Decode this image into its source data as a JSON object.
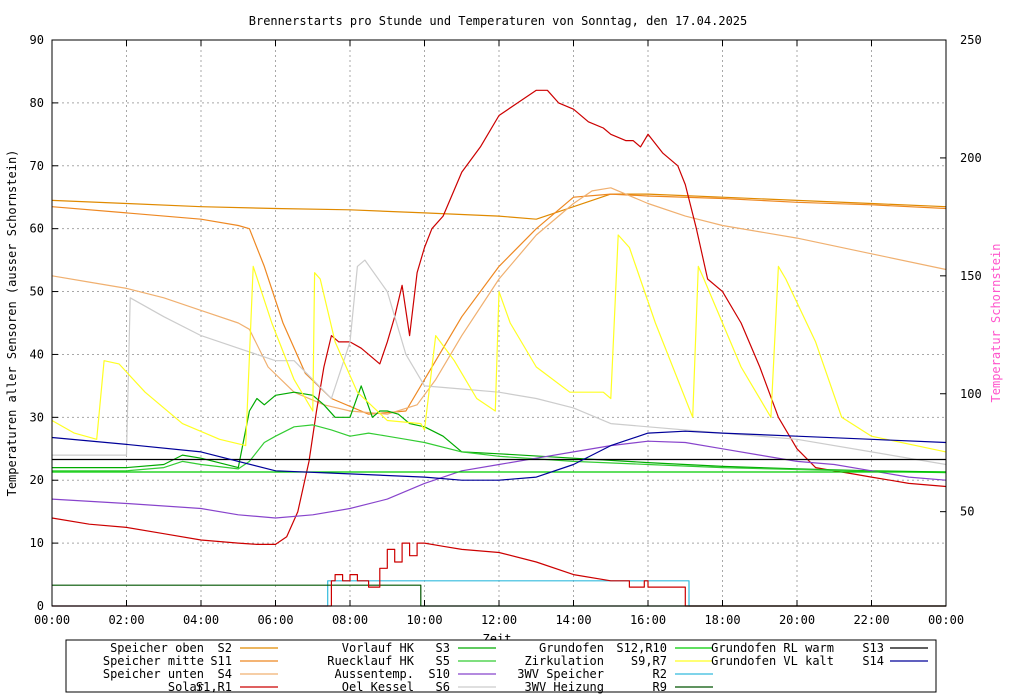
{
  "chart_data": {
    "type": "line",
    "title": "Brennerstarts pro Stunde und Temperaturen von Sonntag, den 17.04.2025",
    "xlabel": "Zeit",
    "ylabel": "Temperaturen aller Sensoren (ausser Schornstein)",
    "y2label": "Temperatur Schornstein",
    "x_ticks": [
      "00:00",
      "02:00",
      "04:00",
      "06:00",
      "08:00",
      "10:00",
      "12:00",
      "14:00",
      "16:00",
      "18:00",
      "20:00",
      "22:00",
      "00:00"
    ],
    "y_ticks": [
      "0",
      "10",
      "20",
      "30",
      "40",
      "50",
      "60",
      "70",
      "80",
      "90"
    ],
    "y2_ticks": [
      "50",
      "100",
      "150",
      "200",
      "250"
    ],
    "xlim": [
      0,
      24
    ],
    "ylim": [
      0,
      90
    ],
    "y2lim": [
      10,
      250
    ],
    "grid": true,
    "legend_position": "bottom",
    "series": [
      {
        "name": "Speicher oben",
        "code": "S2",
        "color": "#e08a00",
        "axis": "y1",
        "x": [
          0,
          2,
          4,
          6,
          8,
          10,
          12,
          13,
          14,
          15,
          16,
          18,
          20,
          22,
          24
        ],
        "y": [
          64.5,
          64,
          63.5,
          63.2,
          63,
          62.5,
          62,
          61.5,
          63.5,
          65.5,
          65.5,
          65,
          64.5,
          64,
          63.5
        ]
      },
      {
        "name": "Speicher mitte",
        "code": "S11",
        "color": "#ee8822",
        "axis": "y1",
        "x": [
          0,
          2,
          4,
          5,
          5.3,
          5.7,
          6.2,
          6.8,
          7.5,
          8.5,
          9.5,
          10,
          11,
          12,
          13,
          14,
          15,
          16,
          18,
          20,
          22,
          24
        ],
        "y": [
          63.5,
          62.5,
          61.5,
          60.5,
          60,
          54,
          45,
          37,
          33,
          30.5,
          31,
          36,
          46,
          54,
          60,
          65,
          65.5,
          65.2,
          64.8,
          64.2,
          63.8,
          63.2
        ]
      },
      {
        "name": "Speicher unten",
        "code": "S4",
        "color": "#f0b070",
        "axis": "y1",
        "x": [
          0,
          1,
          2,
          3,
          4,
          5,
          5.3,
          5.8,
          6.5,
          7.3,
          8,
          9,
          9.8,
          10.3,
          11,
          12,
          13,
          14,
          14.5,
          15,
          16,
          17,
          18,
          20,
          22,
          24
        ],
        "y": [
          52.5,
          51.5,
          50.5,
          49,
          47,
          45,
          44,
          38,
          34,
          32,
          31,
          30.5,
          32,
          36,
          43,
          52,
          59,
          64,
          66,
          66.5,
          64,
          62,
          60.5,
          58.5,
          56,
          53.5
        ]
      },
      {
        "name": "Solar",
        "code": "S1,R1",
        "color": "#cc0000",
        "axis": "y1",
        "x": [
          0,
          1,
          2,
          3,
          4,
          5,
          5.5,
          6,
          6.3,
          6.6,
          6.9,
          7.1,
          7.3,
          7.5,
          7.7,
          8,
          8.3,
          8.5,
          8.8,
          9,
          9.2,
          9.4,
          9.6,
          9.8,
          10,
          10.2,
          10.5,
          11,
          11.5,
          12,
          12.5,
          13,
          13.3,
          13.6,
          14,
          14.4,
          14.8,
          15,
          15.4,
          15.6,
          15.8,
          16,
          16.4,
          16.8,
          17,
          17.3,
          17.6,
          18,
          18.5,
          19,
          19.5,
          20,
          20.5,
          21,
          21.5,
          22,
          22.5,
          23,
          24
        ],
        "y": [
          14,
          13,
          12.5,
          11.5,
          10.5,
          10,
          9.8,
          9.8,
          11,
          15,
          23,
          31,
          38,
          43,
          42,
          42,
          41,
          40,
          38.5,
          42,
          46,
          51,
          43,
          53,
          57,
          60,
          62,
          69,
          73,
          78,
          80,
          82,
          82,
          80,
          79,
          77,
          76,
          75,
          74,
          74,
          73,
          75,
          72,
          70,
          67,
          60,
          52,
          50,
          45,
          38,
          30,
          25,
          22,
          21.5,
          21,
          20.5,
          20,
          19.5,
          19
        ]
      },
      {
        "name": "Vorlauf HK",
        "code": "S3",
        "color": "#00aa00",
        "axis": "y1",
        "x": [
          0,
          2,
          3,
          3.5,
          4,
          5,
          5.3,
          5.5,
          5.7,
          6,
          6.5,
          7,
          7.3,
          7.6,
          8,
          8.3,
          8.6,
          8.8,
          9,
          9.3,
          9.6,
          10,
          10.5,
          11,
          12,
          14,
          16,
          18,
          20,
          22,
          24
        ],
        "y": [
          22,
          22,
          22.5,
          24,
          23.5,
          22,
          31,
          33,
          32,
          33.5,
          34,
          33.5,
          32,
          30,
          30,
          35,
          30,
          31,
          31,
          30.5,
          29,
          28.5,
          27,
          24.5,
          24.2,
          23.5,
          22.8,
          22.2,
          21.8,
          21.5,
          21.3
        ]
      },
      {
        "name": "Ruecklauf HK",
        "code": "S5",
        "color": "#33cc33",
        "axis": "y1",
        "x": [
          0,
          2,
          3,
          3.5,
          4,
          5,
          5.3,
          5.7,
          6,
          6.5,
          7,
          7.5,
          8,
          8.5,
          9,
          9.5,
          10,
          11,
          12,
          14,
          16,
          18,
          20,
          22,
          24
        ],
        "y": [
          21.5,
          21.5,
          22,
          23,
          22.5,
          21.8,
          23,
          26,
          27,
          28.5,
          28.8,
          28,
          27,
          27.5,
          27,
          26.5,
          26,
          24.5,
          23.8,
          23,
          22.5,
          22,
          21.7,
          21.4,
          21.2
        ]
      },
      {
        "name": "Aussentemp.",
        "code": "S10",
        "color": "#8844cc",
        "axis": "y1",
        "x": [
          0,
          2,
          4,
          5,
          6,
          7,
          8,
          9,
          10,
          11,
          12,
          13,
          14,
          15,
          16,
          17,
          18,
          19,
          20,
          21,
          22,
          23,
          24
        ],
        "y": [
          17,
          16.3,
          15.5,
          14.5,
          14,
          14.5,
          15.5,
          17,
          19.5,
          21.5,
          22.5,
          23.5,
          24.5,
          25.5,
          26.2,
          26,
          25,
          24,
          23,
          22.5,
          21.5,
          20.5,
          20
        ]
      },
      {
        "name": "Oel Kessel",
        "code": "S6",
        "color": "#cccccc",
        "axis": "y1",
        "x": [
          0,
          2,
          2.1,
          3,
          4,
          5,
          6,
          6.5,
          7,
          7.5,
          8,
          8.2,
          8.4,
          9,
          9.5,
          10,
          11,
          12,
          13,
          14,
          15,
          16,
          18,
          20,
          22,
          24
        ],
        "y": [
          24,
          24,
          49,
          46,
          43,
          41,
          39,
          39,
          36,
          33,
          42,
          54,
          55,
          50,
          40,
          35,
          34.5,
          34,
          33,
          31.5,
          29,
          28.5,
          27.5,
          26.5,
          24.5,
          22.5
        ]
      },
      {
        "name": "Grundofen",
        "code": "S12,R10",
        "color": "#00cc00",
        "axis": "y1",
        "x": [
          0,
          24
        ],
        "y": [
          21.3,
          21.3
        ]
      },
      {
        "name": "Zirkulation",
        "code": "S9,R7",
        "color": "#ffff22",
        "axis": "y1",
        "x": [
          0,
          0.6,
          1.2,
          1.4,
          1.8,
          2.5,
          3.5,
          4.5,
          5.2,
          5.4,
          5.9,
          6.5,
          7,
          7.05,
          7.2,
          7.6,
          8.2,
          9,
          9.9,
          10,
          10.3,
          10.8,
          11.4,
          11.9,
          12,
          12.3,
          13,
          13.9,
          14.2,
          14.8,
          15,
          15.2,
          15.5,
          16.2,
          17.2,
          17.35,
          17.5,
          18.5,
          19.3,
          19.5,
          19.7,
          20.5,
          21.2,
          22,
          24
        ],
        "y": [
          29.5,
          27.5,
          26.5,
          39,
          38.5,
          34,
          29,
          26.5,
          25.5,
          54,
          45,
          36,
          31,
          53,
          52,
          42,
          34,
          29.5,
          29,
          28,
          43,
          39,
          33,
          31,
          50,
          45,
          38,
          34,
          34,
          34,
          33,
          59,
          57,
          45,
          30,
          54,
          52,
          38,
          30,
          54,
          52,
          42,
          30,
          27,
          24.5
        ]
      },
      {
        "name": "3WV Speicher",
        "code": "R2",
        "color": "#33bbdd",
        "axis": "y1",
        "x": [
          0,
          7.4,
          7.4,
          17.1,
          17.1,
          24
        ],
        "y": [
          0,
          0,
          4,
          4,
          0,
          0
        ]
      },
      {
        "name": "3WV Heizung",
        "code": "R9",
        "color": "#005500",
        "axis": "y1",
        "x": [
          0,
          9.9,
          9.9,
          24
        ],
        "y": [
          3.3,
          3.3,
          0,
          0
        ]
      },
      {
        "name": "Grundofen RL warm",
        "code": "S13",
        "color": "#000000",
        "axis": "y1",
        "x": [
          0,
          24
        ],
        "y": [
          23.3,
          23.3
        ]
      },
      {
        "name": "Grundofen VL kalt",
        "code": "S14",
        "color": "#000099",
        "axis": "y1",
        "x": [
          0,
          2,
          4,
          6,
          8,
          10,
          11,
          12,
          13,
          14,
          15,
          16,
          17,
          18,
          20,
          22,
          24
        ],
        "y": [
          26.8,
          25.7,
          24.5,
          21.5,
          21,
          20.5,
          20,
          20,
          20.5,
          22.5,
          25.5,
          27.5,
          27.8,
          27.5,
          27,
          26.5,
          26
        ]
      },
      {
        "name": "Brennerstarts",
        "code": "",
        "color": "#cc0000",
        "axis": "y1",
        "step": true,
        "x": [
          0,
          7.5,
          7.5,
          7.6,
          7.6,
          7.8,
          7.8,
          8,
          8,
          8.2,
          8.2,
          8.5,
          8.5,
          8.8,
          8.8,
          9,
          9,
          9.2,
          9.2,
          9.4,
          9.4,
          9.6,
          9.6,
          9.8,
          9.8,
          10,
          10.5,
          11,
          12,
          13,
          14,
          15,
          15.5,
          15.5,
          15.9,
          15.9,
          16,
          16,
          17,
          17,
          24
        ],
        "y": [
          0,
          0,
          4,
          4,
          5,
          5,
          4,
          4,
          5,
          5,
          4,
          4,
          3,
          3,
          6,
          6,
          9,
          9,
          7,
          7,
          10,
          10,
          8,
          8,
          10,
          10,
          9.5,
          9,
          8.5,
          7,
          5,
          4,
          4,
          3,
          3,
          4,
          4,
          3,
          3,
          0,
          0
        ]
      }
    ]
  },
  "legend": [
    [
      "Speicher oben",
      "S2",
      "#e08a00"
    ],
    [
      "Speicher mitte",
      "S11",
      "#ee8822"
    ],
    [
      "Speicher unten",
      "S4",
      "#f0b070"
    ],
    [
      "Solar",
      "S1,R1",
      "#cc0000"
    ],
    [
      "Vorlauf HK",
      "S3",
      "#00aa00"
    ],
    [
      "Ruecklauf HK",
      "S5",
      "#33cc33"
    ],
    [
      "Aussentemp.",
      "S10",
      "#8844cc"
    ],
    [
      "Oel Kessel",
      "S6",
      "#cccccc"
    ],
    [
      "Grundofen",
      "S12,R10",
      "#00cc00"
    ],
    [
      "Zirkulation",
      "S9,R7",
      "#ffff22"
    ],
    [
      "3WV Speicher",
      "R2",
      "#33bbdd"
    ],
    [
      "3WV Heizung",
      "R9",
      "#005500"
    ],
    [
      "Grundofen RL warm",
      "S13",
      "#000000"
    ],
    [
      "Grundofen VL kalt",
      "S14",
      "#000099"
    ]
  ]
}
